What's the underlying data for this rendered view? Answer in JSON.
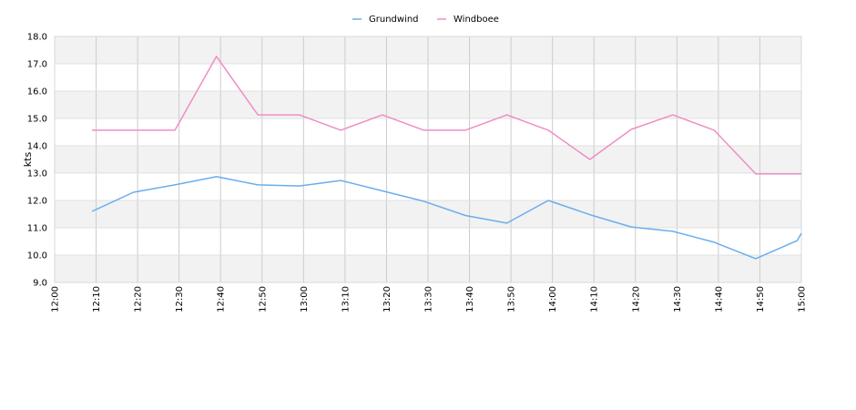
{
  "chart_data": {
    "type": "line",
    "title": "",
    "xlabel": "",
    "ylabel": "kts",
    "ylim": [
      9.0,
      18.0
    ],
    "y_ticks": [
      "9.0",
      "10.0",
      "11.0",
      "12.0",
      "13.0",
      "14.0",
      "15.0",
      "16.0",
      "17.0",
      "18.0"
    ],
    "x_ticks": [
      "12:00",
      "12:10",
      "12:20",
      "12:30",
      "12:40",
      "12:50",
      "13:00",
      "13:10",
      "13:20",
      "13:30",
      "13:40",
      "13:50",
      "14:00",
      "14:10",
      "14:20",
      "14:30",
      "14:40",
      "14:50",
      "15:00"
    ],
    "xlim": [
      "12:00",
      "15:00"
    ],
    "grid": true,
    "legend_position": "top-center",
    "series": [
      {
        "name": "Grundwind",
        "color": "#6aaeed",
        "points": [
          [
            "12:09",
            11.6
          ],
          [
            "12:19",
            12.3
          ],
          [
            "12:29",
            12.57
          ],
          [
            "12:39",
            12.87
          ],
          [
            "12:49",
            12.57
          ],
          [
            "12:59",
            12.53
          ],
          [
            "13:09",
            12.73
          ],
          [
            "13:19",
            12.35
          ],
          [
            "13:29",
            11.97
          ],
          [
            "13:39",
            11.45
          ],
          [
            "13:49",
            11.17
          ],
          [
            "13:59",
            12.0
          ],
          [
            "14:09",
            11.48
          ],
          [
            "14:19",
            11.03
          ],
          [
            "14:29",
            10.87
          ],
          [
            "14:39",
            10.47
          ],
          [
            "14:49",
            9.87
          ],
          [
            "14:59",
            10.53
          ],
          [
            "15:00",
            10.8
          ]
        ]
      },
      {
        "name": "Windboee",
        "color": "#ef8ec4",
        "points": [
          [
            "12:09",
            14.57
          ],
          [
            "12:19",
            14.57
          ],
          [
            "12:29",
            14.57
          ],
          [
            "12:39",
            17.27
          ],
          [
            "12:49",
            15.13
          ],
          [
            "12:59",
            15.13
          ],
          [
            "13:09",
            14.57
          ],
          [
            "13:19",
            15.13
          ],
          [
            "13:29",
            14.57
          ],
          [
            "13:39",
            14.57
          ],
          [
            "13:49",
            15.13
          ],
          [
            "13:59",
            14.57
          ],
          [
            "14:09",
            13.5
          ],
          [
            "14:19",
            14.6
          ],
          [
            "14:29",
            15.13
          ],
          [
            "14:39",
            14.57
          ],
          [
            "14:49",
            12.97
          ],
          [
            "14:59",
            12.97
          ],
          [
            "15:00",
            12.97
          ]
        ]
      }
    ]
  }
}
